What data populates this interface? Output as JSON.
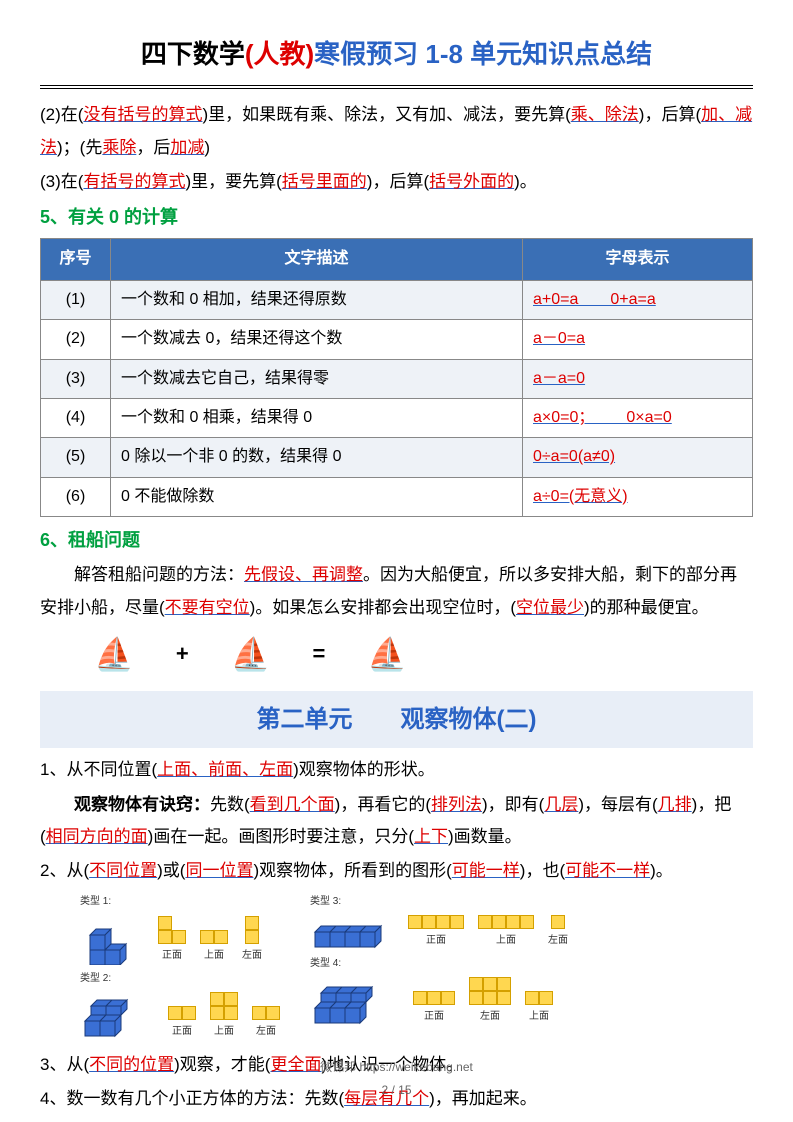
{
  "title": {
    "parts": [
      "四下数学",
      "(人教)",
      "寒假预习 1-8 单元知识点总结"
    ]
  },
  "para2": {
    "prefix": "(2)在(",
    "k1": "没有括号的算式",
    "mid1": ")里，如果既有乘、除法，又有加、减法，要先算(",
    "k2": "乘、除法",
    "mid2": ")，后算(",
    "k3": "加、减法",
    "mid3": ")；(先",
    "k4": "乘除",
    "mid4": "，后",
    "k5": "加减",
    "end": ")"
  },
  "para3": {
    "prefix": "(3)在(",
    "k1": "有括号的算式",
    "mid1": ")里，要先算(",
    "k2": "括号里面的",
    "mid2": ")，后算(",
    "k3": "括号外面的",
    "end": ")。"
  },
  "sec5": "5、有关 0 的计算",
  "table": {
    "headers": [
      "序号",
      "文字描述",
      "字母表示"
    ],
    "rows": [
      {
        "n": "(1)",
        "desc": "一个数和 0 相加，结果还得原数",
        "f": "a+0=a  0+a=a"
      },
      {
        "n": "(2)",
        "desc": "一个数减去 0，结果还得这个数",
        "f": "a－0=a"
      },
      {
        "n": "(3)",
        "desc": "一个数减去它自己，结果得零",
        "f": "a－a=0"
      },
      {
        "n": "(4)",
        "desc": "一个数和 0 相乘，结果得 0",
        "f": "a×0=0；  0×a=0"
      },
      {
        "n": "(5)",
        "desc": "0 除以一个非 0 的数，结果得 0",
        "f": "0÷a=0(a≠0)"
      },
      {
        "n": "(6)",
        "desc": "0 不能做除数",
        "f": "a÷0=(无意义)"
      }
    ]
  },
  "sec6": "6、租船问题",
  "boat": {
    "p1a": "解答租船问题的方法：",
    "k1": "先假设、再调整",
    "p1b": "。因为大船便宜，所以多安排大船，剩下的部分再安排小船，尽量(",
    "k2": "不要有空位",
    "p1c": ")。如果怎么安排都会出现空位时，(",
    "k3": "空位最少",
    "p1d": ")的那种最便宜。"
  },
  "unit2": "第二单元  观察物体(二)",
  "item1": {
    "a": "1、从不同位置(",
    "k1": "上面、前面、左面",
    "b": ")观察物体的形状。"
  },
  "item1b": {
    "a": "观察物体有诀窍：",
    "b": "先数(",
    "k1": "看到几个面",
    "c": ")，再看它的(",
    "k2": "排列法",
    "d": ")，即有(",
    "k3": "几层",
    "e": ")，每层有(",
    "k4": "几排",
    "f": ")，把(",
    "k5": "相同方向的面",
    "g": ")画在一起。画图形时要注意，只分(",
    "k6": "上下",
    "h": ")画数量。"
  },
  "item2": {
    "a": "2、从(",
    "k1": "不同位置",
    "b": ")或(",
    "k2": "同一位置",
    "c": ")观察物体，所看到的图形(",
    "k3": "可能一样",
    "d": ")，也(",
    "k4": "可能不一样",
    "e": ")。"
  },
  "item3": {
    "a": "3、从(",
    "k1": "不同的位置",
    "b": ")观察，才能(",
    "k2": "更全面",
    "c": ")地认识一个物体。"
  },
  "item4": {
    "a": "4、数一数有几个小正方体的方法：先数(",
    "k1": "每层有几个",
    "b": ")，再加起来。"
  },
  "cubes": {
    "types": [
      "类型 1:",
      "类型 2:",
      "类型 3:",
      "类型 4:"
    ],
    "views": [
      "正面",
      "上面",
      "左面"
    ]
  },
  "footer": "微课邦 https://weikebang.net",
  "pagenum": "2 / 15"
}
